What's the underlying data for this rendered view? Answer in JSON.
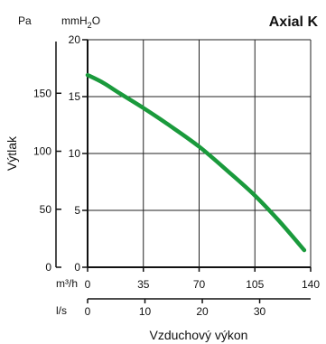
{
  "chart_data": {
    "type": "line",
    "title": "Axial K",
    "xlabel": "Vzduchový výkon",
    "ylabel": "Výtlak",
    "x_unit_primary": "m³/h",
    "x_unit_secondary": "l/s",
    "y_unit_left": "Pa",
    "y_unit_right_base": "mmH",
    "y_unit_right_sub": "2",
    "y_unit_right_tail": "O",
    "xlim": [
      0,
      140
    ],
    "ylim_mmH2O": [
      0,
      20
    ],
    "x_ticks_m3h": [
      "0",
      "35",
      "70",
      "105",
      "140"
    ],
    "x_ticks_ls": [
      "0",
      "10",
      "20",
      "30"
    ],
    "y_ticks_pa": [
      "0",
      "50",
      "100",
      "150"
    ],
    "y_ticks_mmh2o": [
      "0",
      "5",
      "10",
      "15",
      "20"
    ],
    "grid": true,
    "series": [
      {
        "color": "#1a9a3c",
        "x": [
          0,
          10,
          20,
          35,
          50,
          70,
          90,
          105,
          120,
          136
        ],
        "y": [
          16.9,
          16.2,
          15.3,
          14.0,
          12.6,
          10.6,
          8.2,
          6.3,
          4.1,
          1.5
        ]
      }
    ]
  }
}
